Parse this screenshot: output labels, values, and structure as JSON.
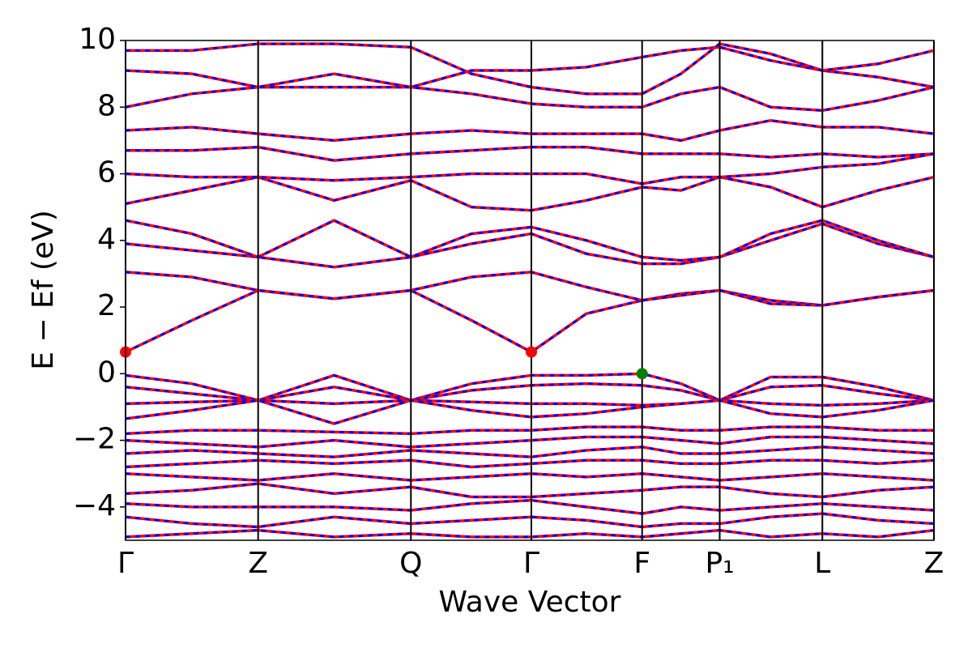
{
  "chart_data": {
    "type": "line",
    "xlabel": "Wave Vector",
    "ylabel": "E − Ef (eV)",
    "xlim": [
      0,
      1
    ],
    "xticks": [
      {
        "value": 0,
        "label": "Γ"
      },
      {
        "value": 0.164,
        "label": "Z"
      },
      {
        "value": 0.353,
        "label": "Q"
      },
      {
        "value": 0.502,
        "label": "Γ"
      },
      {
        "value": 0.639,
        "label": "F"
      },
      {
        "value": 0.735,
        "label": "P₁"
      },
      {
        "value": 0.862,
        "label": "L"
      },
      {
        "value": 1,
        "label": "Z"
      }
    ],
    "ylim": [
      -5,
      10
    ],
    "yticks": [
      {
        "value": -4,
        "label": "−4"
      },
      {
        "value": -2,
        "label": "−2"
      },
      0,
      2,
      4,
      6,
      8,
      10
    ],
    "dash_color": "#0000ff",
    "x": [
      0,
      0.082,
      0.164,
      0.258,
      0.353,
      0.428,
      0.502,
      0.57,
      0.639,
      0.687,
      0.735,
      0.798,
      0.862,
      0.931,
      1
    ],
    "series": [
      {
        "color": "#ff0000",
        "values": [
          0.65,
          1.6,
          2.5,
          2.25,
          2.5,
          1.6,
          0.65,
          1.8,
          2.2,
          2.4,
          2.5,
          2.2,
          2.05,
          2.3,
          2.5
        ]
      },
      {
        "color": "#ff0000",
        "values": [
          3.05,
          2.9,
          2.5,
          2.25,
          2.5,
          2.9,
          3.05,
          2.6,
          2.2,
          2.35,
          2.5,
          2.1,
          2.05,
          2.3,
          2.5
        ]
      },
      {
        "color": "#ff0000",
        "values": [
          3.9,
          3.7,
          3.5,
          3.2,
          3.5,
          3.9,
          4.2,
          3.6,
          3.3,
          3.3,
          3.5,
          4.0,
          4.5,
          3.9,
          3.5
        ]
      },
      {
        "color": "#ff0000",
        "values": [
          4.6,
          4.2,
          3.5,
          4.6,
          3.5,
          4.2,
          4.4,
          4.0,
          3.5,
          3.4,
          3.5,
          4.2,
          4.6,
          4.0,
          3.5
        ]
      },
      {
        "color": "#ff0000",
        "values": [
          5.1,
          5.5,
          5.9,
          5.2,
          5.8,
          5.0,
          4.9,
          5.2,
          5.6,
          5.5,
          5.9,
          5.6,
          5.0,
          5.5,
          5.9
        ]
      },
      {
        "color": "#ff0000",
        "values": [
          6.0,
          5.9,
          5.9,
          5.8,
          5.9,
          6.0,
          6.0,
          6.0,
          5.7,
          5.9,
          5.9,
          6.0,
          6.2,
          6.3,
          6.6
        ]
      },
      {
        "color": "#ff0000",
        "values": [
          6.7,
          6.7,
          6.8,
          6.4,
          6.6,
          6.7,
          6.8,
          6.8,
          6.6,
          6.6,
          6.6,
          6.5,
          6.6,
          6.5,
          6.6
        ]
      },
      {
        "color": "#ff0000",
        "values": [
          7.3,
          7.4,
          7.2,
          7.0,
          7.2,
          7.3,
          7.2,
          7.2,
          7.2,
          7.0,
          7.3,
          7.6,
          7.4,
          7.4,
          7.2
        ]
      },
      {
        "color": "#ff0000",
        "values": [
          8.0,
          8.4,
          8.6,
          8.6,
          8.6,
          8.4,
          8.1,
          8.0,
          8.0,
          8.4,
          8.6,
          8.0,
          7.9,
          8.2,
          8.6
        ]
      },
      {
        "color": "#ff0000",
        "values": [
          9.1,
          9.0,
          8.6,
          9.0,
          8.6,
          9.1,
          9.1,
          9.2,
          9.5,
          9.7,
          9.8,
          9.4,
          9.1,
          8.9,
          8.6
        ]
      },
      {
        "color": "#ff0000",
        "values": [
          9.7,
          9.7,
          9.9,
          9.9,
          9.8,
          9.0,
          8.6,
          8.4,
          8.4,
          9.0,
          9.9,
          9.6,
          9.1,
          9.3,
          9.7
        ]
      },
      {
        "color": "#ff0000",
        "values": [
          -0.05,
          -0.3,
          -0.8,
          -0.05,
          -0.8,
          -0.3,
          -0.05,
          -0.05,
          0,
          -0.3,
          -0.8,
          -0.1,
          -0.1,
          -0.4,
          -0.8
        ]
      },
      {
        "color": "#ff0000",
        "values": [
          -0.4,
          -0.6,
          -0.8,
          -0.4,
          -0.8,
          -0.5,
          -0.35,
          -0.3,
          -0.35,
          -0.5,
          -0.8,
          -0.4,
          -0.35,
          -0.6,
          -0.8
        ]
      },
      {
        "color": "#ff0000",
        "values": [
          -0.9,
          -0.85,
          -0.8,
          -0.9,
          -0.8,
          -0.85,
          -0.9,
          -0.9,
          -0.95,
          -0.9,
          -0.8,
          -0.9,
          -0.95,
          -0.9,
          -0.8
        ]
      },
      {
        "color": "#ff0000",
        "values": [
          -1.35,
          -1.1,
          -0.8,
          -1.5,
          -0.8,
          -1.1,
          -1.3,
          -1.2,
          -1.0,
          -0.9,
          -0.8,
          -1.2,
          -1.3,
          -1.1,
          -0.8
        ]
      },
      {
        "color": "#ff0000",
        "values": [
          -1.8,
          -1.7,
          -1.7,
          -1.75,
          -1.8,
          -1.7,
          -1.7,
          -1.6,
          -1.6,
          -1.7,
          -1.7,
          -1.6,
          -1.6,
          -1.7,
          -1.7
        ]
      },
      {
        "color": "#ff0000",
        "values": [
          -2.0,
          -2.1,
          -2.2,
          -2.0,
          -2.2,
          -2.1,
          -2.0,
          -1.9,
          -1.9,
          -2.0,
          -2.1,
          -1.9,
          -1.9,
          -2.0,
          -2.1
        ]
      },
      {
        "color": "#ff0000",
        "values": [
          -2.4,
          -2.3,
          -2.4,
          -2.5,
          -2.3,
          -2.4,
          -2.5,
          -2.3,
          -2.2,
          -2.4,
          -2.4,
          -2.3,
          -2.2,
          -2.3,
          -2.4
        ]
      },
      {
        "color": "#ff0000",
        "values": [
          -2.8,
          -2.7,
          -2.6,
          -2.7,
          -2.6,
          -2.8,
          -2.7,
          -2.6,
          -2.6,
          -2.7,
          -2.7,
          -2.6,
          -2.6,
          -2.7,
          -2.6
        ]
      },
      {
        "color": "#ff0000",
        "values": [
          -3.0,
          -3.1,
          -3.2,
          -3.0,
          -3.2,
          -3.1,
          -3.0,
          -3.1,
          -3.0,
          -3.1,
          -3.2,
          -3.1,
          -3.0,
          -3.1,
          -3.2
        ]
      },
      {
        "color": "#ff0000",
        "values": [
          -3.6,
          -3.5,
          -3.3,
          -3.6,
          -3.4,
          -3.7,
          -3.7,
          -3.6,
          -3.5,
          -3.4,
          -3.4,
          -3.6,
          -3.7,
          -3.5,
          -3.4
        ]
      },
      {
        "color": "#ff0000",
        "values": [
          -3.9,
          -4.0,
          -4.0,
          -4.0,
          -4.1,
          -3.9,
          -3.8,
          -4.0,
          -4.2,
          -4.0,
          -4.1,
          -4.0,
          -3.9,
          -4.0,
          -4.1
        ]
      },
      {
        "color": "#ff0000",
        "values": [
          -4.3,
          -4.5,
          -4.6,
          -4.3,
          -4.5,
          -4.4,
          -4.3,
          -4.4,
          -4.6,
          -4.5,
          -4.5,
          -4.3,
          -4.2,
          -4.4,
          -4.5
        ]
      },
      {
        "color": "#ff0000",
        "values": [
          -4.9,
          -4.8,
          -4.7,
          -4.9,
          -4.8,
          -4.9,
          -4.9,
          -4.8,
          -4.9,
          -4.8,
          -4.7,
          -4.9,
          -4.8,
          -4.9,
          -4.7
        ]
      }
    ],
    "points": [
      {
        "x": 0,
        "y": 0.65,
        "color": "#ff0000"
      },
      {
        "x": 0.502,
        "y": 0.65,
        "color": "#ff0000"
      },
      {
        "x": 0.639,
        "y": 0,
        "color": "#008000"
      }
    ]
  }
}
